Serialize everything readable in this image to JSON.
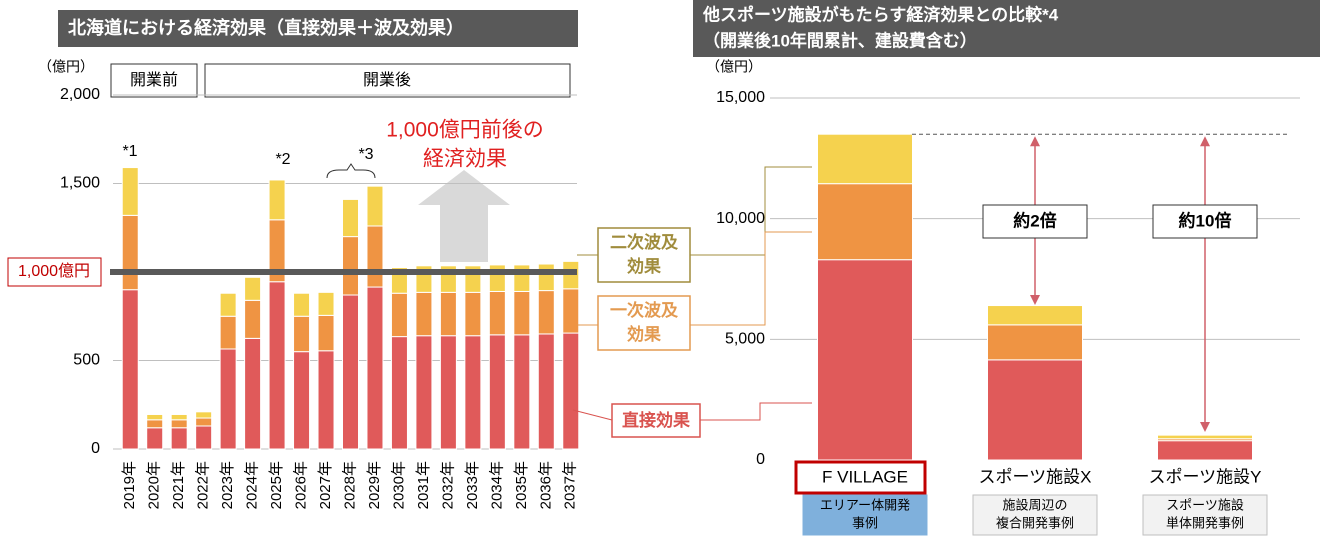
{
  "chart_data": [
    {
      "type": "bar",
      "stacked": true,
      "title": "北海道における経済効果（直接効果＋波及効果）",
      "unit_label": "（億円）",
      "phases": [
        "開業前",
        "開業後"
      ],
      "categories": [
        "2019年",
        "2020年",
        "2021年",
        "2022年",
        "2023年",
        "2024年",
        "2025年",
        "2026年",
        "2027年",
        "2028年",
        "2029年",
        "2030年",
        "2031年",
        "2032年",
        "2033年",
        "2034年",
        "2035年",
        "2036年",
        "2037年"
      ],
      "series": [
        {
          "name": "直接効果",
          "color": "#e05a5a",
          "values": [
            900,
            120,
            120,
            130,
            565,
            625,
            945,
            550,
            555,
            870,
            915,
            635,
            640,
            640,
            640,
            645,
            645,
            650,
            655
          ]
        },
        {
          "name": "一次波及効果",
          "color": "#ef9443",
          "values": [
            420,
            45,
            45,
            45,
            185,
            215,
            350,
            200,
            200,
            330,
            345,
            245,
            245,
            245,
            245,
            245,
            245,
            245,
            250
          ]
        },
        {
          "name": "二次波及効果",
          "color": "#f5d24e",
          "values": [
            270,
            30,
            30,
            35,
            130,
            130,
            225,
            130,
            130,
            210,
            225,
            145,
            150,
            150,
            150,
            150,
            150,
            150,
            155
          ]
        }
      ],
      "ylim": [
        0,
        2000
      ],
      "yticks": [
        0,
        500,
        {
          "value": 1500,
          "label": "1,500"
        },
        {
          "value": 2000,
          "label": "2,000"
        }
      ],
      "grid": true,
      "reference_line": {
        "value": 1000,
        "label": "1,000億円"
      },
      "annotations": [
        "*1",
        "*2",
        "*3"
      ],
      "highlight": [
        "1,000億円前後の",
        "経済効果"
      ]
    },
    {
      "type": "bar",
      "stacked": true,
      "title": [
        "他スポーツ施設がもたらす経済効果との比較*4",
        "（開業後10年間累計、建設費含む）"
      ],
      "unit_label": "（億円）",
      "categories": [
        "F VILLAGE",
        "スポーツ施設X",
        "スポーツ施設Y"
      ],
      "category_notes": [
        [
          "エリアー体開発",
          "事例"
        ],
        [
          "施設周辺の",
          "複合開発事例"
        ],
        [
          "スポーツ施設",
          "単体開発事例"
        ]
      ],
      "series": [
        {
          "color": "#e05a5a",
          "values": [
            8300,
            4150,
            800
          ]
        },
        {
          "color": "#ef9443",
          "values": [
            3150,
            1450,
            80
          ]
        },
        {
          "color": "#f5d24e",
          "values": [
            2050,
            800,
            150
          ]
        }
      ],
      "ylim": [
        0,
        15000
      ],
      "yticks": [
        0,
        {
          "value": 5000,
          "label": "5,000"
        },
        {
          "value": 10000,
          "label": "10,000"
        },
        {
          "value": 15000,
          "label": "15,000"
        }
      ],
      "grid": true,
      "ratios": [
        "約2倍",
        "約10倍"
      ]
    }
  ]
}
